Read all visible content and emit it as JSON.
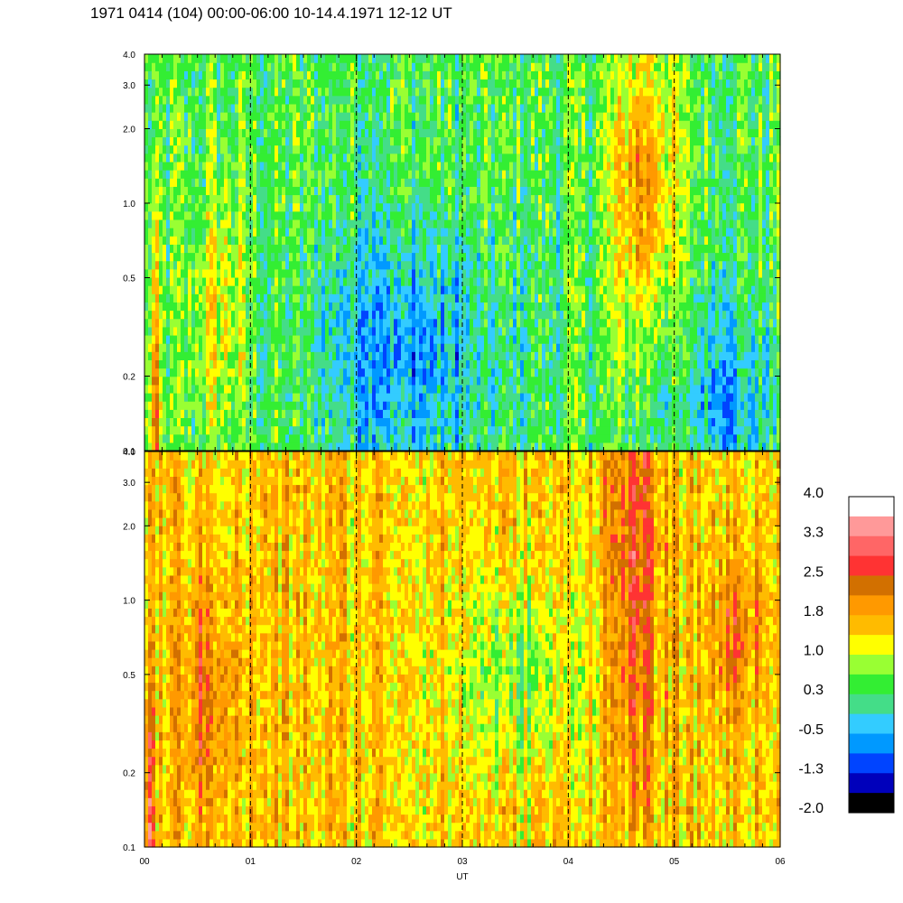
{
  "chart_data": {
    "type": "heatmap",
    "title": "1971 0414 (104) 00:00-06:00 10-14.4.1971  12-12 UT",
    "xlabel": "UT",
    "x_ticks": [
      "00",
      "01",
      "02",
      "03",
      "04",
      "05",
      "06"
    ],
    "x_range_hours": [
      0,
      6
    ],
    "panels": [
      {
        "name": "upper",
        "y_scale": "log",
        "ylim": [
          0.1,
          4.0
        ],
        "y_ticks": [
          "0.1",
          "0.2",
          "0.5",
          "1.0",
          "2.0",
          "3.0",
          "4.0"
        ],
        "y_tick_values": [
          0.1,
          0.2,
          0.5,
          1.0,
          2.0,
          3.0,
          4.0
        ],
        "base_level": 0.4,
        "features": [
          {
            "hour": 0.1,
            "freq": 0.15,
            "level": 1.9,
            "dh": 0.05,
            "df": 0.6
          },
          {
            "hour": 0.7,
            "freq": 0.35,
            "level": 1.2,
            "dh": 0.25,
            "df": 0.5
          },
          {
            "hour": 4.7,
            "freq": 1.2,
            "level": 2.0,
            "dh": 0.3,
            "df": 0.6
          },
          {
            "hour": 2.5,
            "freq": 0.25,
            "level": -0.6,
            "dh": 0.9,
            "df": 0.5
          },
          {
            "hour": 5.5,
            "freq": 0.15,
            "level": -0.4,
            "dh": 0.5,
            "df": 0.4
          }
        ]
      },
      {
        "name": "lower",
        "y_scale": "log",
        "ylim": [
          0.1,
          4.0
        ],
        "y_ticks": [
          "0.1",
          "0.2",
          "0.5",
          "1.0",
          "2.0",
          "3.0",
          "4.0"
        ],
        "y_tick_values": [
          0.1,
          0.2,
          0.5,
          1.0,
          2.0,
          3.0,
          4.0
        ],
        "base_level": 1.5,
        "features": [
          {
            "hour": 0.05,
            "freq": 0.15,
            "level": 2.8,
            "dh": 0.04,
            "df": 0.5
          },
          {
            "hour": 0.6,
            "freq": 0.4,
            "level": 2.3,
            "dh": 0.25,
            "df": 0.5
          },
          {
            "hour": 4.6,
            "freq": 1.5,
            "level": 2.4,
            "dh": 0.25,
            "df": 0.9
          },
          {
            "hour": 5.6,
            "freq": 0.7,
            "level": 2.3,
            "dh": 0.25,
            "df": 0.3
          },
          {
            "hour": 3.5,
            "freq": 0.5,
            "level": 0.6,
            "dh": 0.6,
            "df": 0.4
          }
        ]
      }
    ],
    "dashed_lines_hours": [
      1,
      2,
      3,
      4,
      5
    ],
    "colorbar": {
      "labels": [
        "4.0",
        "3.3",
        "2.5",
        "1.8",
        "1.0",
        "0.3",
        "-0.5",
        "-1.3",
        "-2.0"
      ],
      "label_values": [
        4.0,
        3.3,
        2.5,
        1.8,
        1.0,
        0.3,
        -0.5,
        -1.3,
        -2.0
      ],
      "range": [
        -2.0,
        4.0
      ],
      "colors_top_to_bottom": [
        "#ffffff",
        "#ff9999",
        "#ff6666",
        "#ff3333",
        "#d27000",
        "#ff9900",
        "#ffbb00",
        "#ffff00",
        "#99ff33",
        "#33ee33",
        "#44dd88",
        "#33ccff",
        "#0099ff",
        "#0044ff",
        "#0000bb",
        "#000000"
      ]
    }
  }
}
